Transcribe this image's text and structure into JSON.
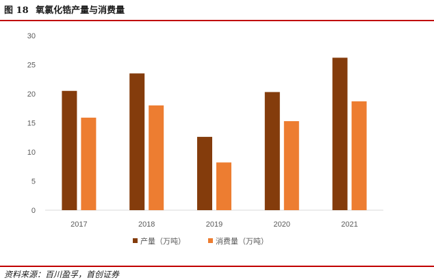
{
  "header": {
    "figure_no": "图 18",
    "title": "氧氯化锆产量与消费量"
  },
  "source": {
    "text": "资料来源：百川盈孚，首创证券"
  },
  "colors": {
    "rule": "#c00000",
    "series_1": "#843c0c",
    "series_2": "#ed7d31"
  },
  "chart_data": {
    "type": "bar",
    "title": "氧氯化锆产量与消费量",
    "categories": [
      "2017",
      "2018",
      "2019",
      "2020",
      "2021"
    ],
    "series": [
      {
        "name": "产量（万吨）",
        "color": "#843c0c",
        "values": [
          20.5,
          23.5,
          12.6,
          20.3,
          26.2
        ]
      },
      {
        "name": "消费量（万吨）",
        "color": "#ed7d31",
        "values": [
          15.9,
          18.0,
          8.2,
          15.3,
          18.7
        ]
      }
    ],
    "ylim": [
      0,
      30
    ],
    "yticks": [
      0,
      5,
      10,
      15,
      20,
      25,
      30
    ],
    "grid": false,
    "legend": "bottom"
  }
}
